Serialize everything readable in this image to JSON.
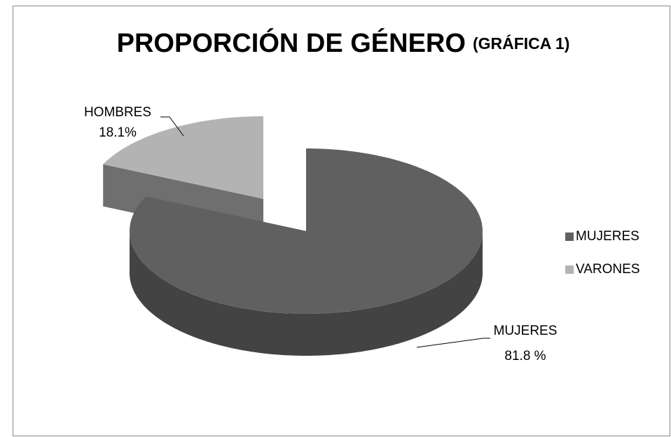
{
  "chart_data": {
    "type": "pie3d",
    "title": "PROPORCIÓN DE GÉNERO",
    "subtitle": "(GRÁFICA 1)",
    "categories": [
      "MUJERES",
      "VARONES"
    ],
    "values": [
      81.8,
      18.1
    ],
    "value_labels": [
      "81.8 %",
      "18.1%"
    ],
    "label_names": [
      "MUJERES",
      "HOMBRES"
    ],
    "colors": [
      "#606060",
      "#b3b3b3"
    ],
    "legend": "right"
  }
}
